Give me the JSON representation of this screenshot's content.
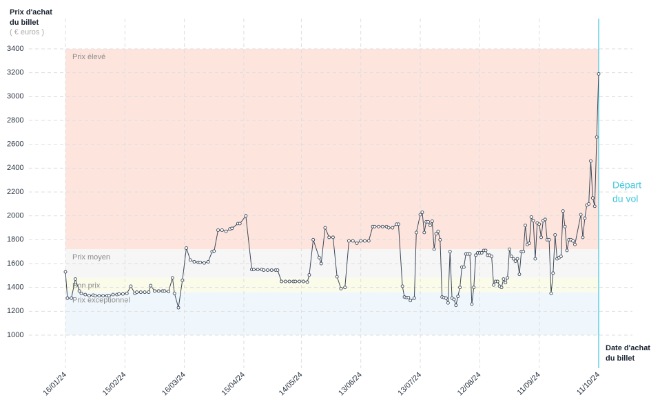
{
  "chart_data": {
    "type": "line",
    "y_title": [
      "Prix d'achat",
      "du billet"
    ],
    "y_unit": "( € euros )",
    "x_title": [
      "Date d'achat",
      "du billet"
    ],
    "departure_label": [
      "Départ",
      "du vol"
    ],
    "departure_date": "2024-10-11",
    "departure_color": "#3ec6dc",
    "grid": true,
    "ylim": [
      1000,
      3400
    ],
    "yticks": [
      1000,
      1200,
      1400,
      1600,
      1800,
      2000,
      2200,
      2400,
      2600,
      2800,
      3000,
      3200,
      3400
    ],
    "xlim": [
      "2024-01-16",
      "2024-10-11"
    ],
    "xticks": [
      {
        "value": "2024-01-16",
        "label": "16/01/24"
      },
      {
        "value": "2024-02-15",
        "label": "15/02/24"
      },
      {
        "value": "2024-03-16",
        "label": "16/03/24"
      },
      {
        "value": "2024-04-15",
        "label": "15/04/24"
      },
      {
        "value": "2024-05-14",
        "label": "14/05/24"
      },
      {
        "value": "2024-06-13",
        "label": "13/06/24"
      },
      {
        "value": "2024-07-13",
        "label": "13/07/24"
      },
      {
        "value": "2024-08-12",
        "label": "12/08/24"
      },
      {
        "value": "2024-09-11",
        "label": "11/09/24"
      },
      {
        "value": "2024-10-11",
        "label": "11/10/24"
      }
    ],
    "bands": [
      {
        "label": "Prix élevé",
        "from": 1720,
        "to": 3400,
        "color": "#fde5de"
      },
      {
        "label": "Prix moyen",
        "from": 1480,
        "to": 1720,
        "color": "#f6f6f6"
      },
      {
        "label": "Bon prix",
        "from": 1360,
        "to": 1480,
        "color": "#fbfbea"
      },
      {
        "label": "Prix exceptionnel",
        "from": 1000,
        "to": 1360,
        "color": "#f0f7fc"
      }
    ],
    "series": [
      {
        "color": "#3b4758",
        "x": [
          "2024-01-16",
          "2024-01-17",
          "2024-01-19",
          "2024-01-21",
          "2024-01-23",
          "2024-01-24",
          "2024-01-26",
          "2024-01-28",
          "2024-01-30",
          "2024-01-31",
          "2024-02-02",
          "2024-02-04",
          "2024-02-06",
          "2024-02-07",
          "2024-02-09",
          "2024-02-11",
          "2024-02-12",
          "2024-02-14",
          "2024-02-16",
          "2024-02-18",
          "2024-02-20",
          "2024-02-21",
          "2024-02-23",
          "2024-02-25",
          "2024-02-27",
          "2024-02-28",
          "2024-03-01",
          "2024-03-03",
          "2024-03-05",
          "2024-03-06",
          "2024-03-08",
          "2024-03-10",
          "2024-03-11",
          "2024-03-13",
          "2024-03-15",
          "2024-03-17",
          "2024-03-19",
          "2024-03-21",
          "2024-03-23",
          "2024-03-24",
          "2024-03-26",
          "2024-03-28",
          "2024-03-30",
          "2024-03-31",
          "2024-04-02",
          "2024-04-04",
          "2024-04-06",
          "2024-04-08",
          "2024-04-09",
          "2024-04-12",
          "2024-04-13",
          "2024-04-16",
          "2024-04-19",
          "2024-04-20",
          "2024-04-22",
          "2024-04-24",
          "2024-04-25",
          "2024-04-27",
          "2024-04-29",
          "2024-05-01",
          "2024-05-02",
          "2024-05-04",
          "2024-05-06",
          "2024-05-08",
          "2024-05-10",
          "2024-05-11",
          "2024-05-13",
          "2024-05-15",
          "2024-05-17",
          "2024-05-18",
          "2024-05-20",
          "2024-05-23",
          "2024-05-24",
          "2024-05-26",
          "2024-05-28",
          "2024-05-30",
          "2024-06-01",
          "2024-06-03",
          "2024-06-05",
          "2024-06-07",
          "2024-06-09",
          "2024-06-11",
          "2024-06-13",
          "2024-06-15",
          "2024-06-17",
          "2024-06-19",
          "2024-06-20",
          "2024-06-22",
          "2024-06-24",
          "2024-06-26",
          "2024-06-27",
          "2024-06-29",
          "2024-07-01",
          "2024-07-02",
          "2024-07-04",
          "2024-07-05",
          "2024-07-06",
          "2024-07-07",
          "2024-07-08",
          "2024-07-10",
          "2024-07-11",
          "2024-07-13",
          "2024-07-14",
          "2024-07-15",
          "2024-07-16",
          "2024-07-17",
          "2024-07-18",
          "2024-07-19",
          "2024-07-20",
          "2024-07-21",
          "2024-07-22",
          "2024-07-23",
          "2024-07-24",
          "2024-07-25",
          "2024-07-26",
          "2024-07-27",
          "2024-07-28",
          "2024-07-29",
          "2024-07-30",
          "2024-07-31",
          "2024-08-01",
          "2024-08-02",
          "2024-08-03",
          "2024-08-04",
          "2024-08-05",
          "2024-08-06",
          "2024-08-07",
          "2024-08-08",
          "2024-08-09",
          "2024-08-10",
          "2024-08-11",
          "2024-08-12",
          "2024-08-13",
          "2024-08-14",
          "2024-08-15",
          "2024-08-16",
          "2024-08-17",
          "2024-08-18",
          "2024-08-19",
          "2024-08-20",
          "2024-08-21",
          "2024-08-22",
          "2024-08-23",
          "2024-08-24",
          "2024-08-25",
          "2024-08-26",
          "2024-08-27",
          "2024-08-28",
          "2024-08-29",
          "2024-08-30",
          "2024-08-31",
          "2024-09-01",
          "2024-09-02",
          "2024-09-03",
          "2024-09-04",
          "2024-09-05",
          "2024-09-06",
          "2024-09-07",
          "2024-09-08",
          "2024-09-09",
          "2024-09-10",
          "2024-09-11",
          "2024-09-12",
          "2024-09-13",
          "2024-09-14",
          "2024-09-15",
          "2024-09-16",
          "2024-09-17",
          "2024-09-18",
          "2024-09-19",
          "2024-09-20",
          "2024-09-21",
          "2024-09-22",
          "2024-09-23",
          "2024-09-24",
          "2024-09-25",
          "2024-09-26",
          "2024-09-27",
          "2024-09-28",
          "2024-09-29",
          "2024-10-02",
          "2024-10-03",
          "2024-10-04",
          "2024-10-05",
          "2024-10-06",
          "2024-10-07",
          "2024-10-08",
          "2024-10-09",
          "2024-10-10",
          "2024-10-11"
        ],
        "values": [
          1530,
          1310,
          1310,
          1470,
          1370,
          1350,
          1340,
          1330,
          1335,
          1330,
          1330,
          1330,
          1330,
          1330,
          1340,
          1340,
          1345,
          1345,
          1350,
          1410,
          1350,
          1360,
          1360,
          1360,
          1360,
          1415,
          1370,
          1370,
          1370,
          1370,
          1365,
          1480,
          1350,
          1230,
          1460,
          1730,
          1630,
          1615,
          1610,
          1610,
          1605,
          1615,
          1700,
          1705,
          1880,
          1880,
          1870,
          1890,
          1895,
          1935,
          1935,
          2000,
          1550,
          1550,
          1550,
          1550,
          1545,
          1545,
          1545,
          1545,
          1545,
          1450,
          1450,
          1450,
          1450,
          1450,
          1450,
          1450,
          1445,
          1505,
          1800,
          1650,
          1600,
          1900,
          1820,
          1820,
          1490,
          1390,
          1400,
          1790,
          1790,
          1770,
          1790,
          1790,
          1790,
          1910,
          1910,
          1910,
          1910,
          1910,
          1900,
          1900,
          1930,
          1930,
          1410,
          1320,
          1315,
          1315,
          1290,
          1310,
          1860,
          2010,
          2030,
          1860,
          1950,
          1950,
          1920,
          1955,
          1720,
          1850,
          1870,
          1800,
          1320,
          1315,
          1310,
          1270,
          1700,
          1310,
          1300,
          1250,
          1325,
          1400,
          1570,
          1570,
          1680,
          1680,
          1680,
          1260,
          1400,
          1670,
          1690,
          1690,
          1690,
          1710,
          1710,
          1670,
          1670,
          1660,
          1420,
          1450,
          1450,
          1410,
          1400,
          1470,
          1440,
          1480,
          1720,
          1660,
          1640,
          1620,
          1640,
          1510,
          1700,
          1700,
          1920,
          1760,
          1770,
          1990,
          1960,
          1640,
          1940,
          1930,
          1820,
          1960,
          1970,
          1800,
          1800,
          1350,
          1520,
          1840,
          1640,
          1650,
          1660,
          2040,
          1910,
          1710,
          1800,
          1800,
          1790,
          1760,
          2010,
          1820,
          1980,
          2090,
          2100,
          2460,
          2150,
          2080,
          2660,
          3190
        ]
      }
    ]
  }
}
